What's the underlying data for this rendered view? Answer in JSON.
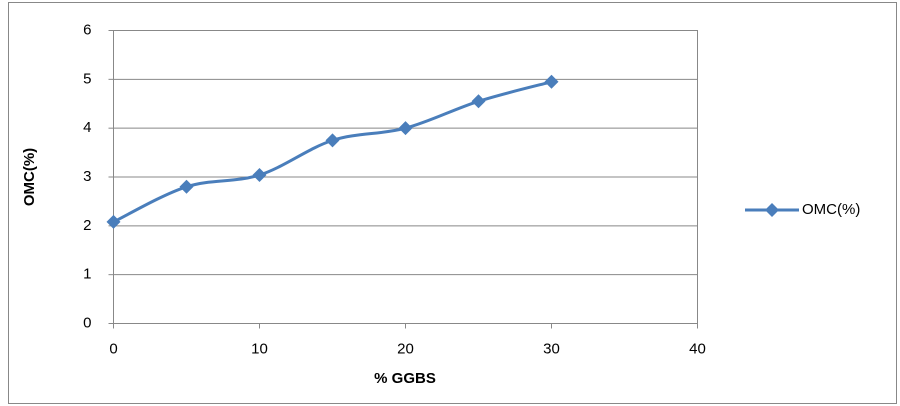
{
  "chart_data": {
    "type": "line",
    "x": [
      0,
      5,
      10,
      15,
      20,
      25,
      30
    ],
    "series": [
      {
        "name": "OMC(%)",
        "color": "#4a7ebb",
        "values": [
          2.08,
          2.8,
          3.04,
          3.75,
          4.0,
          4.55,
          4.95
        ]
      }
    ],
    "xlabel": "% GGBS",
    "ylabel": "OMC(%)",
    "xlim": [
      0,
      40
    ],
    "xticks": [
      0,
      10,
      20,
      30,
      40
    ],
    "ylim": [
      0,
      6
    ],
    "yticks": [
      0,
      1,
      2,
      3,
      4,
      5,
      6
    ],
    "grid": true,
    "legend": "right",
    "smooth": true
  }
}
